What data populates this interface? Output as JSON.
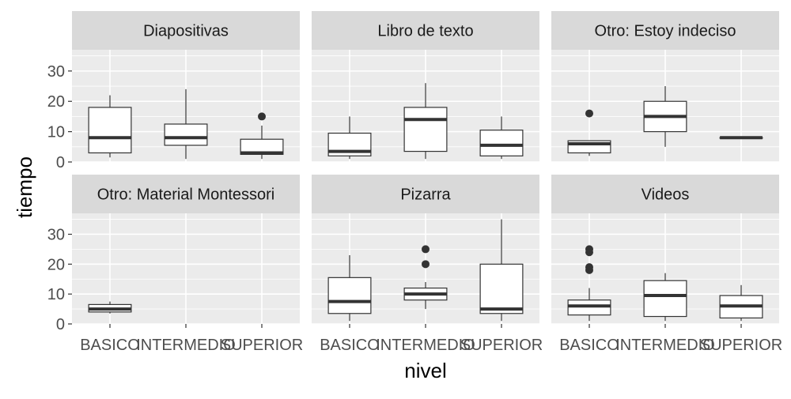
{
  "chart_data": {
    "type": "boxplot",
    "facet_layout": "3x2 grid",
    "xlabel": "nivel",
    "ylabel": "tiempo",
    "categories": [
      "BASICO",
      "INTERMEDIO",
      "SUPERIOR"
    ],
    "ylim": [
      0,
      37
    ],
    "y_ticks": [
      0,
      10,
      20,
      30
    ],
    "grid": true,
    "panels": [
      {
        "title": "Diapositivas",
        "boxes": [
          {
            "category": "BASICO",
            "min": 1.5,
            "q1": 3,
            "median": 8,
            "q3": 18,
            "max": 22,
            "outliers": []
          },
          {
            "category": "INTERMEDIO",
            "min": 1,
            "q1": 5.5,
            "median": 8,
            "q3": 12.5,
            "max": 24,
            "outliers": []
          },
          {
            "category": "SUPERIOR",
            "min": 1,
            "q1": 2.5,
            "median": 3,
            "q3": 7.5,
            "max": 12,
            "outliers": [
              15
            ]
          }
        ]
      },
      {
        "title": "Libro de texto",
        "boxes": [
          {
            "category": "BASICO",
            "min": 1,
            "q1": 2,
            "median": 3.5,
            "q3": 9.5,
            "max": 15,
            "outliers": []
          },
          {
            "category": "INTERMEDIO",
            "min": 1,
            "q1": 3.5,
            "median": 14,
            "q3": 18,
            "max": 26,
            "outliers": []
          },
          {
            "category": "SUPERIOR",
            "min": 1,
            "q1": 2,
            "median": 5.5,
            "q3": 10.5,
            "max": 15,
            "outliers": []
          }
        ]
      },
      {
        "title": "Otro: Estoy indeciso",
        "boxes": [
          {
            "category": "BASICO",
            "min": 2,
            "q1": 3,
            "median": 6,
            "q3": 7,
            "max": 7,
            "outliers": [
              16
            ]
          },
          {
            "category": "INTERMEDIO",
            "min": 5,
            "q1": 10,
            "median": 15,
            "q3": 20,
            "max": 25,
            "outliers": []
          },
          {
            "category": "SUPERIOR",
            "min": 8,
            "q1": 8,
            "median": 8,
            "q3": 8,
            "max": 8,
            "outliers": []
          }
        ]
      },
      {
        "title": "Otro: Material Montessori",
        "boxes": [
          {
            "category": "BASICO",
            "min": 3.5,
            "q1": 4,
            "median": 5,
            "q3": 6.5,
            "max": 7.5,
            "outliers": []
          }
        ]
      },
      {
        "title": "Pizarra",
        "boxes": [
          {
            "category": "BASICO",
            "min": 1,
            "q1": 3.5,
            "median": 7.5,
            "q3": 15.5,
            "max": 23,
            "outliers": []
          },
          {
            "category": "INTERMEDIO",
            "min": 5,
            "q1": 8,
            "median": 10,
            "q3": 12,
            "max": 14,
            "outliers": [
              20,
              25
            ]
          },
          {
            "category": "SUPERIOR",
            "min": 1,
            "q1": 3.5,
            "median": 5,
            "q3": 20,
            "max": 35,
            "outliers": []
          }
        ]
      },
      {
        "title": "Videos",
        "boxes": [
          {
            "category": "BASICO",
            "min": 1,
            "q1": 3,
            "median": 6,
            "q3": 8,
            "max": 12,
            "outliers": [
              18,
              19,
              24,
              25
            ]
          },
          {
            "category": "INTERMEDIO",
            "min": 1,
            "q1": 2.5,
            "median": 9.5,
            "q3": 14.5,
            "max": 17,
            "outliers": []
          },
          {
            "category": "SUPERIOR",
            "min": 1,
            "q1": 2,
            "median": 6,
            "q3": 9.5,
            "max": 13,
            "outliers": []
          }
        ]
      }
    ]
  }
}
